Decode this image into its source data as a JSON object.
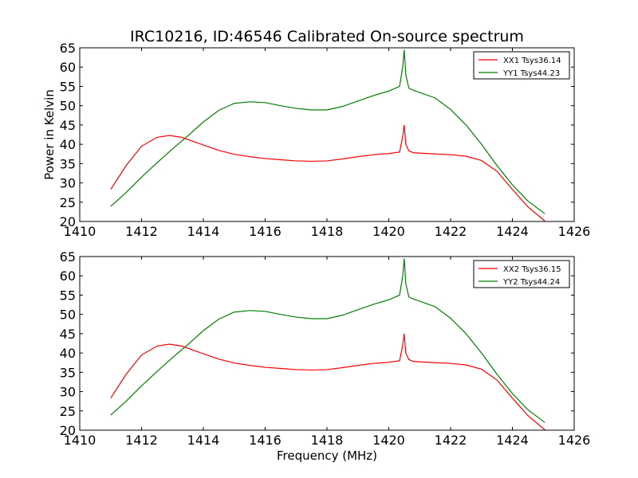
{
  "chart_data": [
    {
      "type": "line",
      "title": "IRC10216, ID:46546 Calibrated On-source spectrum",
      "xlabel": "",
      "ylabel": "Power in Kelvin",
      "xlim": [
        1410,
        1426
      ],
      "ylim": [
        20,
        65
      ],
      "xticks": [
        1410,
        1412,
        1414,
        1416,
        1418,
        1420,
        1422,
        1424,
        1426
      ],
      "yticks": [
        20,
        25,
        30,
        35,
        40,
        45,
        50,
        55,
        60,
        65
      ],
      "legend_position": "upper right",
      "series": [
        {
          "name": "XX1 Tsys36.14",
          "color": "#ff0000",
          "x": [
            1411.0,
            1411.5,
            1412.0,
            1412.5,
            1412.9,
            1413.3,
            1414.0,
            1414.5,
            1415.0,
            1415.5,
            1416.0,
            1416.5,
            1417.0,
            1417.5,
            1418.0,
            1418.5,
            1419.0,
            1419.5,
            1420.0,
            1420.35,
            1420.45,
            1420.5,
            1420.55,
            1420.65,
            1420.8,
            1421.5,
            1422.0,
            1422.5,
            1423.0,
            1423.5,
            1424.0,
            1424.5,
            1425.05
          ],
          "y": [
            28.3,
            34.5,
            39.5,
            41.8,
            42.3,
            41.8,
            39.8,
            38.4,
            37.4,
            36.8,
            36.3,
            36.0,
            35.7,
            35.6,
            35.7,
            36.2,
            36.8,
            37.3,
            37.6,
            38.0,
            42.0,
            45.0,
            40.0,
            38.3,
            37.8,
            37.5,
            37.3,
            36.9,
            35.8,
            33.0,
            28.3,
            23.8,
            20.1
          ]
        },
        {
          "name": "YY1 Tsys44.23",
          "color": "#008000",
          "x": [
            1411.0,
            1411.5,
            1412.0,
            1412.5,
            1413.0,
            1413.5,
            1414.0,
            1414.5,
            1415.0,
            1415.5,
            1416.0,
            1416.5,
            1417.0,
            1417.5,
            1418.0,
            1418.5,
            1419.0,
            1419.5,
            1420.0,
            1420.35,
            1420.45,
            1420.5,
            1420.55,
            1420.65,
            1420.8,
            1421.5,
            1422.0,
            1422.5,
            1423.0,
            1423.5,
            1424.0,
            1424.5,
            1425.05
          ],
          "y": [
            23.9,
            27.5,
            31.5,
            35.2,
            38.8,
            42.2,
            45.8,
            48.8,
            50.6,
            51.0,
            50.8,
            50.0,
            49.3,
            48.9,
            48.9,
            49.8,
            51.2,
            52.6,
            53.8,
            55.0,
            60.0,
            64.5,
            58.0,
            54.5,
            54.0,
            52.0,
            49.0,
            45.0,
            40.0,
            34.5,
            29.5,
            25.3,
            22.0
          ]
        }
      ]
    },
    {
      "type": "line",
      "title": "",
      "xlabel": "Frequency (MHz)",
      "ylabel": "",
      "xlim": [
        1410,
        1426
      ],
      "ylim": [
        20,
        65
      ],
      "xticks": [
        1410,
        1412,
        1414,
        1416,
        1418,
        1420,
        1422,
        1424,
        1426
      ],
      "yticks": [
        20,
        25,
        30,
        35,
        40,
        45,
        50,
        55,
        60,
        65
      ],
      "legend_position": "upper right",
      "series": [
        {
          "name": "XX2 Tsys36.15",
          "color": "#ff0000",
          "x": [
            1411.0,
            1411.5,
            1412.0,
            1412.5,
            1412.9,
            1413.3,
            1414.0,
            1414.5,
            1415.0,
            1415.5,
            1416.0,
            1416.5,
            1417.0,
            1417.5,
            1418.0,
            1418.5,
            1419.0,
            1419.5,
            1420.0,
            1420.35,
            1420.45,
            1420.5,
            1420.55,
            1420.65,
            1420.8,
            1421.5,
            1422.0,
            1422.5,
            1423.0,
            1423.5,
            1424.0,
            1424.5,
            1425.05
          ],
          "y": [
            28.3,
            34.5,
            39.5,
            41.8,
            42.3,
            41.8,
            39.8,
            38.4,
            37.4,
            36.8,
            36.3,
            36.0,
            35.7,
            35.6,
            35.7,
            36.2,
            36.8,
            37.3,
            37.6,
            38.0,
            42.0,
            45.0,
            40.0,
            38.3,
            37.8,
            37.5,
            37.3,
            36.9,
            35.8,
            33.0,
            28.3,
            23.8,
            20.1
          ]
        },
        {
          "name": "YY2 Tsys44.24",
          "color": "#008000",
          "x": [
            1411.0,
            1411.5,
            1412.0,
            1412.5,
            1413.0,
            1413.5,
            1414.0,
            1414.5,
            1415.0,
            1415.5,
            1416.0,
            1416.5,
            1417.0,
            1417.5,
            1418.0,
            1418.5,
            1419.0,
            1419.5,
            1420.0,
            1420.35,
            1420.45,
            1420.5,
            1420.55,
            1420.65,
            1420.8,
            1421.5,
            1422.0,
            1422.5,
            1423.0,
            1423.5,
            1424.0,
            1424.5,
            1425.05
          ],
          "y": [
            23.9,
            27.5,
            31.5,
            35.2,
            38.8,
            42.2,
            45.8,
            48.8,
            50.6,
            51.0,
            50.8,
            50.0,
            49.3,
            48.9,
            48.9,
            49.8,
            51.2,
            52.6,
            53.8,
            55.0,
            60.0,
            64.5,
            58.0,
            54.5,
            54.0,
            52.0,
            49.0,
            45.0,
            40.0,
            34.5,
            29.5,
            25.3,
            22.0
          ]
        }
      ]
    }
  ]
}
